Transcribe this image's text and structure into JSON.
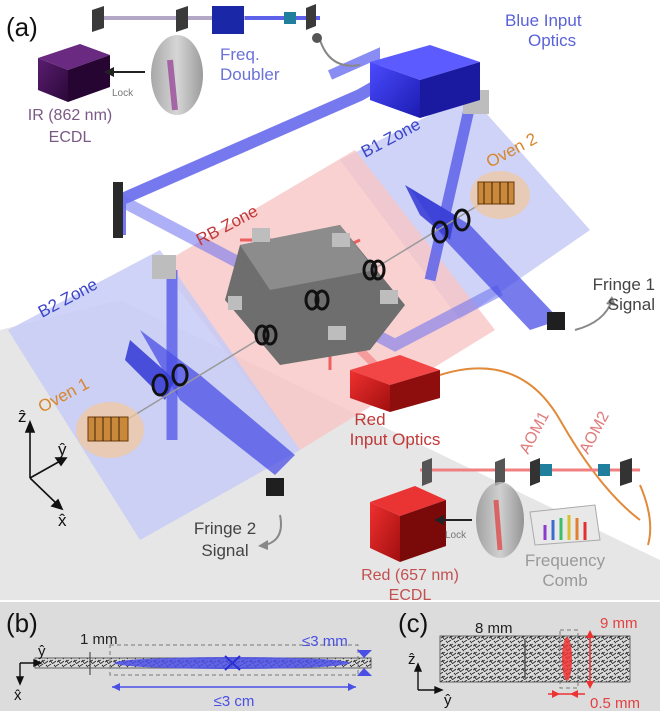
{
  "panel_labels": {
    "a": "(a)",
    "b": "(b)",
    "c": "(c)"
  },
  "zones": {
    "b1": "B1 Zone",
    "b2": "B2 Zone",
    "rb": "RB Zone"
  },
  "ovens": {
    "oven1": "Oven 1",
    "oven2": "Oven 2"
  },
  "fringe": {
    "f1_line1": "Fringe 1",
    "f1_line2": "Signal",
    "f2_line1": "Fringe 2",
    "f2_line2": "Signal"
  },
  "blue_optics": {
    "line1": "Blue Input",
    "line2": "Optics"
  },
  "red_optics": {
    "line1": "Red",
    "line2": "Input Optics"
  },
  "freq_doubler": {
    "line1": "Freq.",
    "line2": "Doubler"
  },
  "ir_laser": {
    "line1": "IR (862 nm)",
    "line2": "ECDL"
  },
  "red_laser": {
    "line1": "Red (657 nm)",
    "line2": "ECDL"
  },
  "lock_labels": {
    "top": "Lock",
    "bottom": "Lock"
  },
  "aom": {
    "aom1": "AOM1",
    "aom2": "AOM2"
  },
  "freq_comb": {
    "line1": "Frequency",
    "line2": "Comb"
  },
  "axes_main": {
    "z": "ẑ",
    "y": "ŷ",
    "x": "x̂"
  },
  "panel_b": {
    "axis_y": "ŷ",
    "axis_x": "x̂",
    "thickness": "1 mm",
    "beam_width": "≤3 mm",
    "beam_length": "≤3 cm"
  },
  "panel_c": {
    "axis_z": "ẑ",
    "axis_y": "ŷ",
    "height": "8 mm",
    "beam_height": "9 mm",
    "beam_width": "0.5 mm"
  },
  "colors": {
    "blue_zone": "#c9cdf5",
    "red_zone": "#f6c9c9",
    "blue_beam": "#4a4fe6",
    "red_beam": "#ee3a3a",
    "blue_text": "#3b44c9",
    "red_text": "#c03838",
    "oven_text": "#d8862c",
    "ir_text": "#7a5a85",
    "laser_red": "#d01c1c",
    "laser_purple": "#3b0d4d",
    "optics_blue": "#2a2dd0"
  }
}
